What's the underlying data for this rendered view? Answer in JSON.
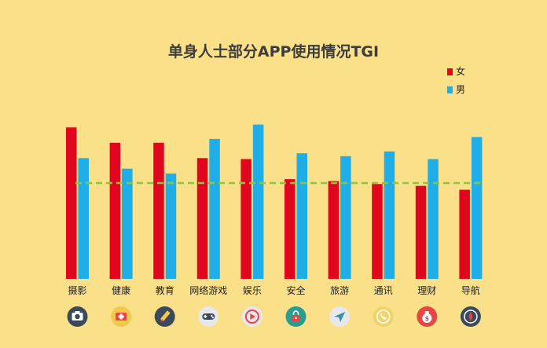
{
  "chart_data": {
    "type": "bar",
    "title": "单身人士部分APP使用情况TGI",
    "categories": [
      "摄影",
      "健康",
      "教育",
      "网络游戏",
      "娱乐",
      "安全",
      "旅游",
      "通讯",
      "理财",
      "导航"
    ],
    "series": [
      {
        "name": "女",
        "color": "#e0061e",
        "values": [
          158,
          142,
          142,
          126,
          125,
          104,
          102,
          99,
          97,
          93
        ]
      },
      {
        "name": "男",
        "color": "#1faee8",
        "values": [
          126,
          115,
          110,
          146,
          161,
          131,
          128,
          133,
          125,
          148
        ]
      }
    ],
    "reference_line": {
      "value": 100,
      "color": "#8cc63f",
      "style": "dashed"
    },
    "ylim": [
      0,
      200
    ],
    "legend_position": "top-right",
    "grid": false,
    "xlabel": "",
    "ylabel": ""
  },
  "icons": [
    {
      "name": "camera-icon",
      "bg": "#3b4a5a"
    },
    {
      "name": "health-kit-icon",
      "bg": "#f2c94c"
    },
    {
      "name": "pencil-icon",
      "bg": "#3b4a5a"
    },
    {
      "name": "gamepad-icon",
      "bg": "#e8e8ec"
    },
    {
      "name": "play-icon",
      "bg": "#e8e8ec"
    },
    {
      "name": "security-icon",
      "bg": "#2a9d8f"
    },
    {
      "name": "paper-plane-icon",
      "bg": "#e8e8ec"
    },
    {
      "name": "phone-icon",
      "bg": "#f0d36a"
    },
    {
      "name": "money-bag-icon",
      "bg": "#e84545"
    },
    {
      "name": "compass-icon",
      "bg": "#3b4a5a"
    }
  ]
}
